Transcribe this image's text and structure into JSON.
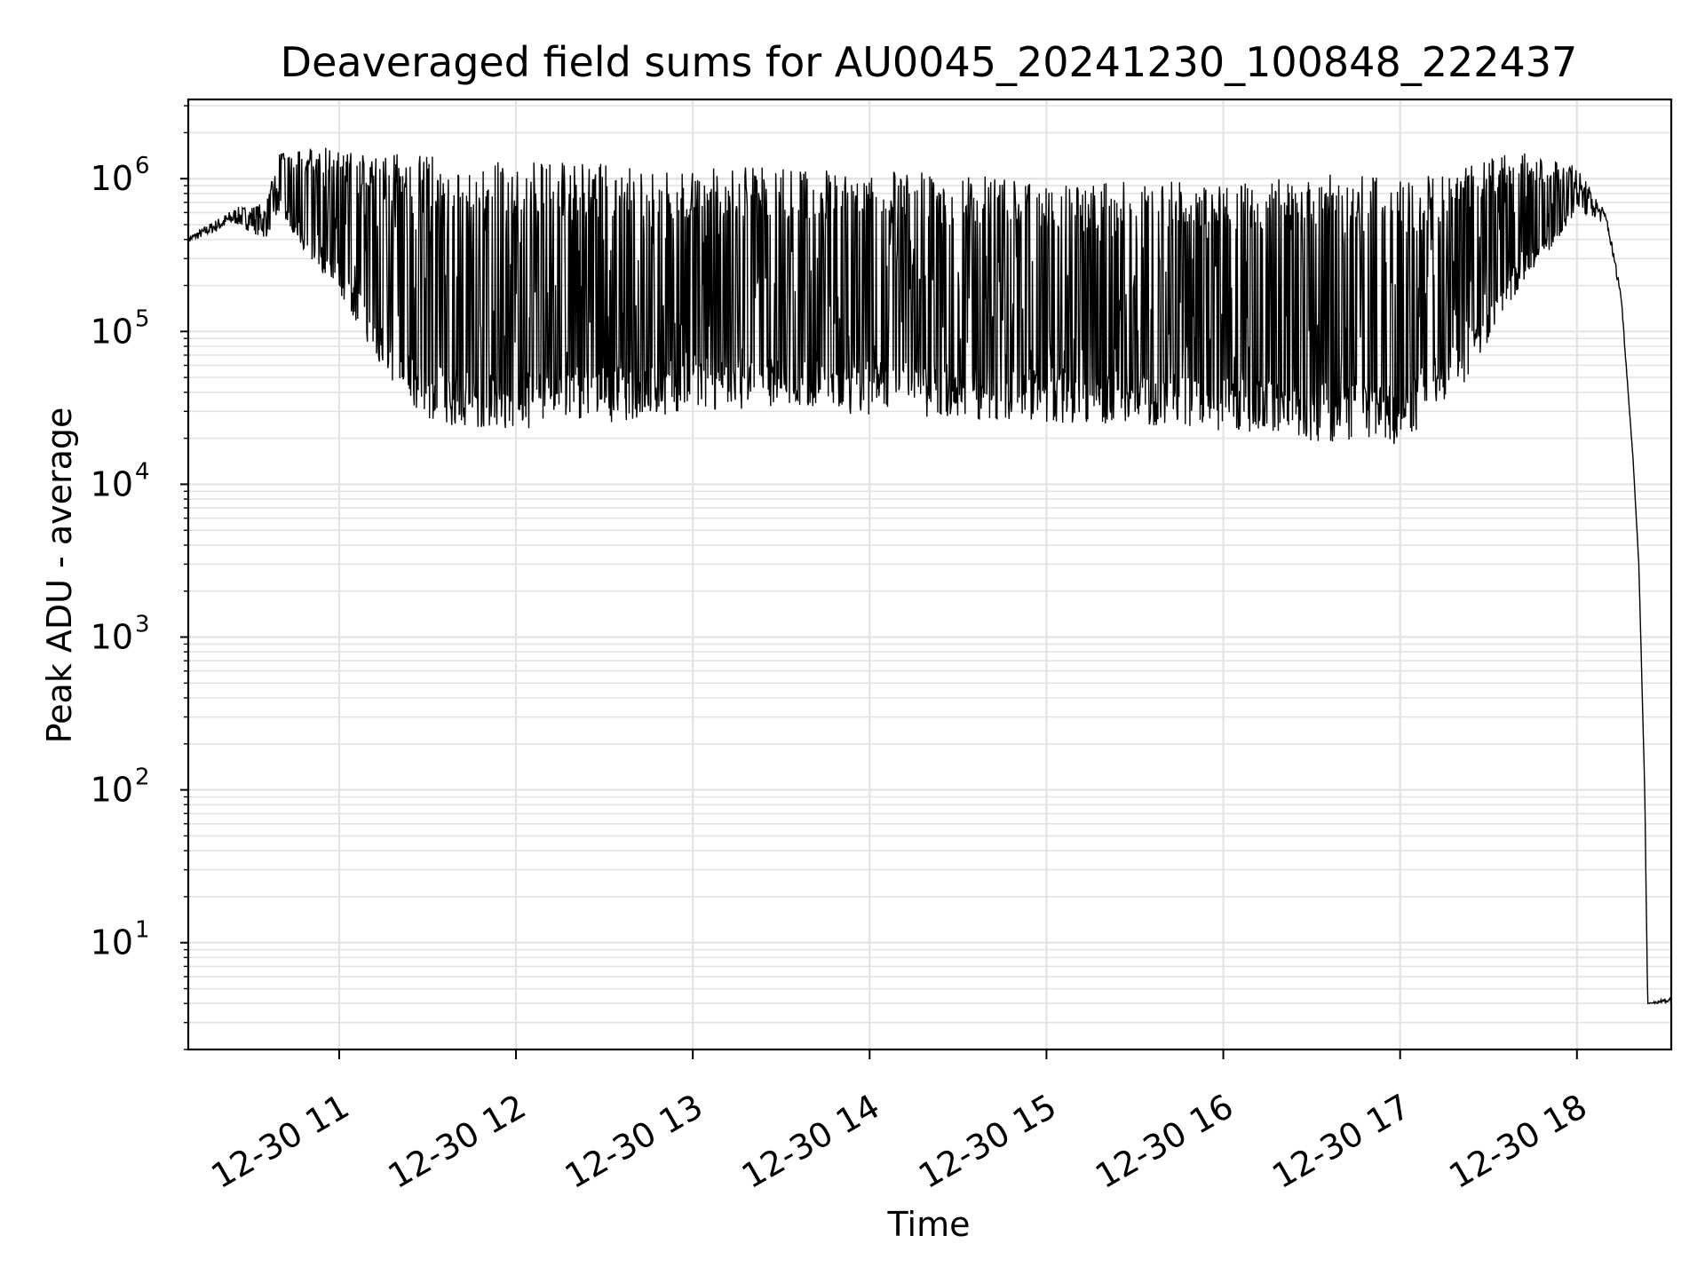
{
  "chart_data": {
    "type": "line",
    "title": "Deaveraged field sums for AU0045_20241230_100848_222437",
    "xlabel": "Time",
    "ylabel": "Peak ADU - average",
    "x_axis": {
      "kind": "time",
      "range": [
        "2024-12-30 10:08:48",
        "2024-12-30 18:32:00"
      ],
      "ticks": [
        {
          "value": "2024-12-30 11:00",
          "label": "12-30 11"
        },
        {
          "value": "2024-12-30 12:00",
          "label": "12-30 12"
        },
        {
          "value": "2024-12-30 13:00",
          "label": "12-30 13"
        },
        {
          "value": "2024-12-30 14:00",
          "label": "12-30 14"
        },
        {
          "value": "2024-12-30 15:00",
          "label": "12-30 15"
        },
        {
          "value": "2024-12-30 16:00",
          "label": "12-30 16"
        },
        {
          "value": "2024-12-30 17:00",
          "label": "12-30 17"
        },
        {
          "value": "2024-12-30 18:00",
          "label": "12-30 18"
        }
      ]
    },
    "y_axis": {
      "scale": "log",
      "range": [
        2,
        3300000
      ],
      "ticks": [
        {
          "value": 10,
          "base": "10",
          "exp": "1"
        },
        {
          "value": 100,
          "base": "10",
          "exp": "2"
        },
        {
          "value": 1000,
          "base": "10",
          "exp": "3"
        },
        {
          "value": 10000,
          "base": "10",
          "exp": "4"
        },
        {
          "value": 100000,
          "base": "10",
          "exp": "5"
        },
        {
          "value": 1000000,
          "base": "10",
          "exp": "6"
        }
      ]
    },
    "grid": true,
    "series": [
      {
        "color": "#000000",
        "envelope": [
          {
            "t": "2024-12-30 10:08:48",
            "low": 380000,
            "high": 420000
          },
          {
            "t": "2024-12-30 10:25",
            "low": 500000,
            "high": 650000
          },
          {
            "t": "2024-12-30 10:35",
            "low": 400000,
            "high": 700000
          },
          {
            "t": "2024-12-30 10:40",
            "low": 600000,
            "high": 1500000
          },
          {
            "t": "2024-12-30 10:50",
            "low": 300000,
            "high": 1600000
          },
          {
            "t": "2024-12-30 11:00",
            "low": 180000,
            "high": 1600000
          },
          {
            "t": "2024-12-30 11:15",
            "low": 55000,
            "high": 1500000
          },
          {
            "t": "2024-12-30 11:30",
            "low": 25000,
            "high": 1400000
          },
          {
            "t": "2024-12-30 12:00",
            "low": 22000,
            "high": 1300000
          },
          {
            "t": "2024-12-30 12:30",
            "low": 25000,
            "high": 1250000
          },
          {
            "t": "2024-12-30 13:00",
            "low": 30000,
            "high": 1250000
          },
          {
            "t": "2024-12-30 13:30",
            "low": 32000,
            "high": 1200000
          },
          {
            "t": "2024-12-30 14:00",
            "low": 28000,
            "high": 1150000
          },
          {
            "t": "2024-12-30 14:30",
            "low": 27000,
            "high": 1100000
          },
          {
            "t": "2024-12-30 15:00",
            "low": 25000,
            "high": 900000
          },
          {
            "t": "2024-12-30 15:30",
            "low": 25000,
            "high": 1000000
          },
          {
            "t": "2024-12-30 16:00",
            "low": 22000,
            "high": 900000
          },
          {
            "t": "2024-12-30 16:30",
            "low": 19000,
            "high": 1100000
          },
          {
            "t": "2024-12-30 17:00",
            "low": 18000,
            "high": 1000000
          },
          {
            "t": "2024-12-30 17:20",
            "low": 40000,
            "high": 1200000
          },
          {
            "t": "2024-12-30 17:40",
            "low": 180000,
            "high": 1500000
          },
          {
            "t": "2024-12-30 18:00",
            "low": 600000,
            "high": 1200000
          },
          {
            "t": "2024-12-30 18:10",
            "low": 500000,
            "high": 600000
          },
          {
            "t": "2024-12-30 18:15",
            "low": 160000,
            "high": 180000
          },
          {
            "t": "2024-12-30 18:19",
            "low": 15000,
            "high": 15000
          },
          {
            "t": "2024-12-30 18:21",
            "low": 3000,
            "high": 3000
          },
          {
            "t": "2024-12-30 18:23",
            "low": 100,
            "high": 100
          },
          {
            "t": "2024-12-30 18:24",
            "low": 4,
            "high": 4
          },
          {
            "t": "2024-12-30 18:32",
            "low": 4,
            "high": 4.5
          }
        ]
      }
    ]
  }
}
